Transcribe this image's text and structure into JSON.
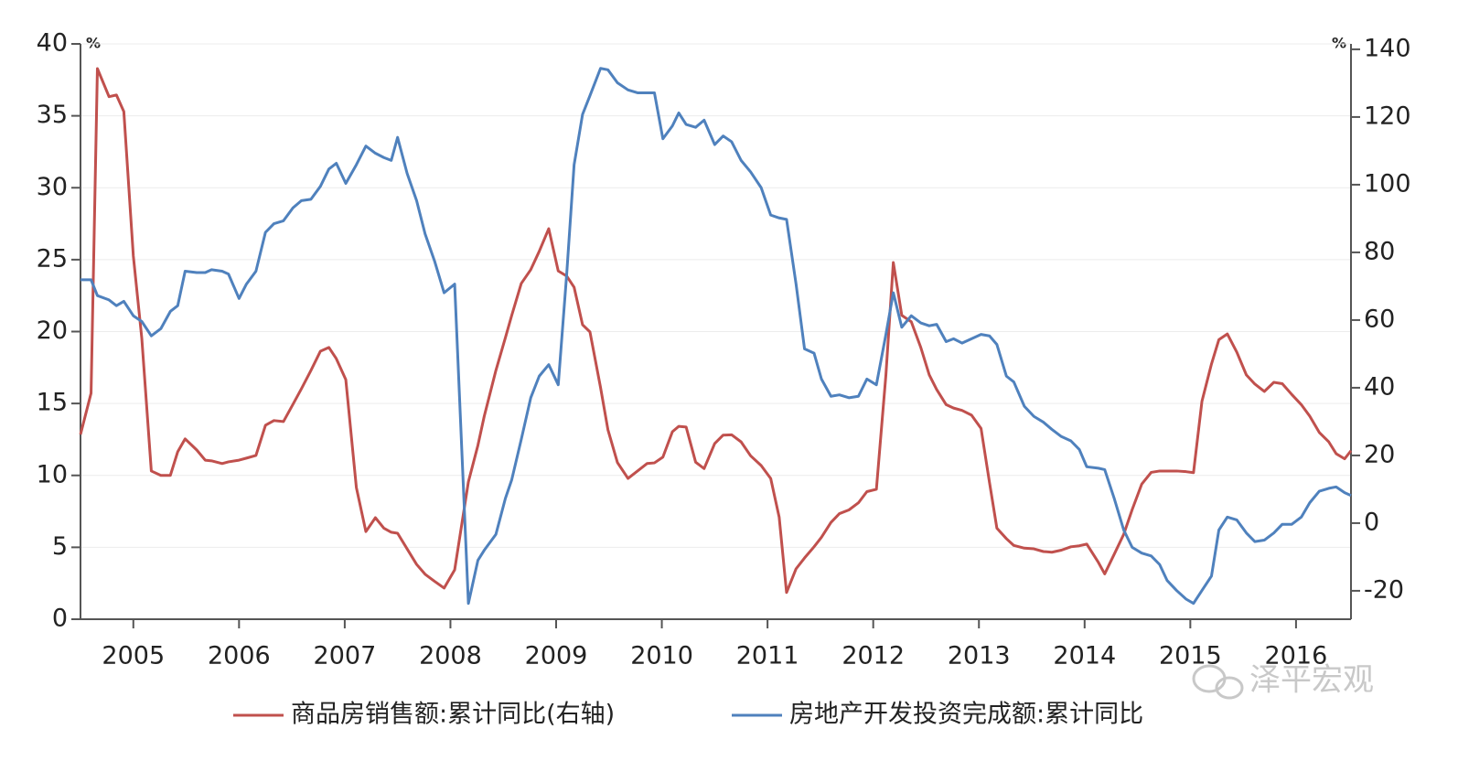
{
  "chart_data": {
    "type": "line",
    "y_unit": "%",
    "y2_unit": "%",
    "watermark": "泽平宏观",
    "legend": "bottom",
    "grid": true,
    "xlim": [
      2004.5,
      2016.52
    ],
    "xticks": [
      2005,
      2006,
      2007,
      2008,
      2009,
      2010,
      2011,
      2012,
      2013,
      2014,
      2015,
      2016
    ],
    "ylim": [
      0,
      40
    ],
    "yticks": [
      0,
      5,
      10,
      15,
      20,
      25,
      30,
      35,
      40
    ],
    "y2lim": [
      -28.4,
      141.6
    ],
    "y2ticks": [
      -20,
      0,
      20,
      40,
      60,
      80,
      100,
      120,
      140
    ],
    "x": [
      2004.5,
      2004.6,
      2004.66,
      2004.77,
      2004.84,
      2004.91,
      2005.0,
      2005.08,
      2005.17,
      2005.26,
      2005.35,
      2005.42,
      2005.49,
      2005.6,
      2005.68,
      2005.74,
      2005.84,
      2005.9,
      2006.0,
      2006.07,
      2006.16,
      2006.25,
      2006.33,
      2006.42,
      2006.51,
      2006.59,
      2006.68,
      2006.77,
      2006.85,
      2006.92,
      2007.01,
      2007.11,
      2007.2,
      2007.29,
      2007.37,
      2007.44,
      2007.5,
      2007.59,
      2007.68,
      2007.76,
      2007.85,
      2007.94,
      2008.04,
      2008.17,
      2008.26,
      2008.32,
      2008.43,
      2008.52,
      2008.58,
      2008.67,
      2008.76,
      2008.84,
      2008.93,
      2009.02,
      2009.1,
      2009.17,
      2009.25,
      2009.32,
      2009.42,
      2009.49,
      2009.58,
      2009.68,
      2009.77,
      2009.86,
      2009.93,
      2010.01,
      2010.1,
      2010.16,
      2010.23,
      2010.32,
      2010.4,
      2010.5,
      2010.58,
      2010.66,
      2010.75,
      2010.84,
      2010.94,
      2011.03,
      2011.11,
      2011.18,
      2011.27,
      2011.35,
      2011.44,
      2011.51,
      2011.6,
      2011.68,
      2011.77,
      2011.86,
      2011.94,
      2012.03,
      2012.12,
      2012.19,
      2012.27,
      2012.36,
      2012.45,
      2012.53,
      2012.6,
      2012.69,
      2012.76,
      2012.84,
      2012.93,
      2013.02,
      2013.1,
      2013.17,
      2013.26,
      2013.33,
      2013.43,
      2013.52,
      2013.61,
      2013.69,
      2013.78,
      2013.87,
      2013.95,
      2014.02,
      2014.13,
      2014.19,
      2014.28,
      2014.37,
      2014.45,
      2014.54,
      2014.63,
      2014.71,
      2014.78,
      2014.87,
      2014.96,
      2015.03,
      2015.11,
      2015.2,
      2015.27,
      2015.35,
      2015.44,
      2015.53,
      2015.61,
      2015.7,
      2015.79,
      2015.87,
      2015.96,
      2016.05,
      2016.13,
      2016.22,
      2016.31,
      2016.38,
      2016.46,
      2016.52
    ],
    "series": [
      {
        "name": "商品房销售额:累计同比(右轴)",
        "color": "#c0504d",
        "axis": "y2",
        "values": [
          26.2,
          38.4,
          134.3,
          126,
          126.5,
          121.6,
          78.9,
          54.6,
          15.4,
          14.1,
          14.1,
          21.1,
          24.9,
          21.6,
          18.6,
          18.4,
          17.6,
          18.1,
          18.6,
          19.2,
          20.0,
          28.9,
          30.3,
          30.0,
          35.1,
          39.7,
          45.1,
          50.8,
          51.9,
          48.6,
          42.4,
          10.5,
          -2.5,
          1.6,
          -1.5,
          -2.7,
          -3.0,
          -7.6,
          -12.2,
          -15.1,
          -17.2,
          -19.2,
          -13.8,
          12.2,
          23.0,
          31.6,
          45.1,
          54.8,
          61.4,
          70.8,
          74.9,
          80.3,
          87.0,
          74.5,
          73.0,
          69.7,
          58.6,
          56.5,
          40.1,
          27.6,
          17.9,
          13.2,
          15.4,
          17.6,
          17.8,
          19.5,
          27.0,
          28.6,
          28.4,
          18.0,
          16.1,
          23.5,
          26.0,
          26.1,
          24.0,
          19.9,
          17.0,
          13.2,
          1.8,
          -20.5,
          -13.5,
          -10.3,
          -7.0,
          -4.2,
          0.2,
          2.8,
          3.9,
          6.0,
          9.3,
          10.0,
          43.8,
          77.0,
          61.4,
          59.5,
          51.9,
          43.8,
          39.5,
          35.0,
          34.0,
          33.3,
          31.9,
          28.0,
          12.0,
          -1.5,
          -4.6,
          -6.6,
          -7.4,
          -7.6,
          -8.4,
          -8.6,
          -8.0,
          -7.0,
          -6.7,
          -6.2,
          -11.6,
          -15.0,
          -9.2,
          -3.3,
          4.0,
          11.5,
          15.0,
          15.4,
          15.4,
          15.4,
          15.2,
          14.9,
          36.0,
          47.0,
          54.2,
          55.9,
          50.5,
          43.8,
          41.1,
          38.9,
          41.6,
          41.2,
          38.0,
          35.0,
          31.6,
          26.8,
          24.0,
          20.5,
          19.0,
          21.4
        ]
      },
      {
        "name": "房地产开发投资完成额:累计同比",
        "color": "#4f81bd",
        "values": [
          23.6,
          23.6,
          22.5,
          22.2,
          21.8,
          22.1,
          21.1,
          20.7,
          19.7,
          20.2,
          21.4,
          21.8,
          24.2,
          24.1,
          24.1,
          24.3,
          24.2,
          24.0,
          22.3,
          23.3,
          24.2,
          26.9,
          27.5,
          27.7,
          28.6,
          29.1,
          29.2,
          30.1,
          31.3,
          31.7,
          30.3,
          31.6,
          32.9,
          32.4,
          32.1,
          31.9,
          33.5,
          31.0,
          29.1,
          26.8,
          24.9,
          22.7,
          23.3,
          1.1,
          4.1,
          4.8,
          5.9,
          8.4,
          9.7,
          12.5,
          15.4,
          16.9,
          17.7,
          16.3,
          24.0,
          31.6,
          35.1,
          36.4,
          38.3,
          38.2,
          37.3,
          36.8,
          36.6,
          36.6,
          36.6,
          33.4,
          34.3,
          35.2,
          34.4,
          34.2,
          34.7,
          33.0,
          33.6,
          33.2,
          31.9,
          31.1,
          30.0,
          28.1,
          27.9,
          27.8,
          23.3,
          18.8,
          18.5,
          16.7,
          15.5,
          15.6,
          15.4,
          15.5,
          16.7,
          16.3,
          19.8,
          22.7,
          20.3,
          21.1,
          20.6,
          20.4,
          20.5,
          19.3,
          19.5,
          19.2,
          19.5,
          19.8,
          19.7,
          19.1,
          16.9,
          16.5,
          14.8,
          14.1,
          13.7,
          13.2,
          12.7,
          12.4,
          11.8,
          10.6,
          10.5,
          10.4,
          8.4,
          6.2,
          5.0,
          4.6,
          4.4,
          3.8,
          2.7,
          2.0,
          1.4,
          1.1,
          2.0,
          3.0,
          6.2,
          7.1,
          6.9,
          6.0,
          5.4,
          5.5,
          6.0,
          6.6,
          6.6,
          7.1,
          8.1,
          8.9,
          9.1,
          9.2,
          8.8,
          8.6
        ]
      }
    ]
  }
}
